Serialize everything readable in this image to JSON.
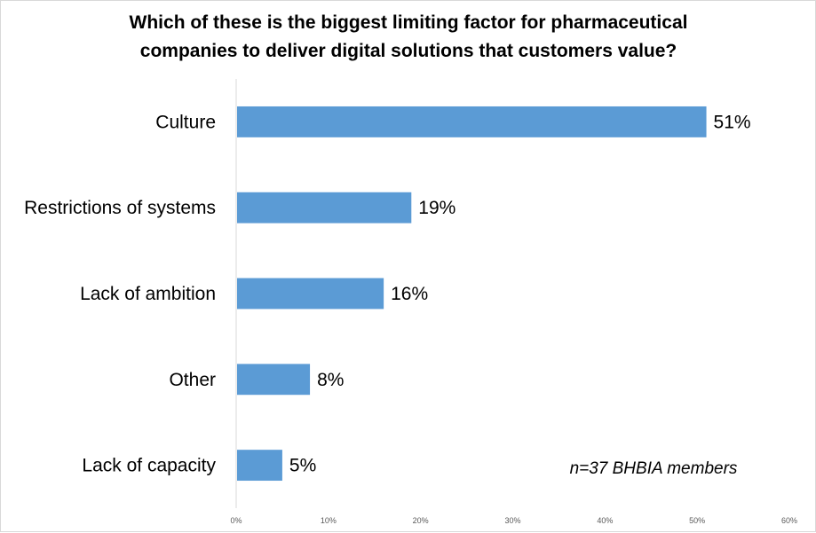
{
  "chart_data": {
    "type": "bar",
    "orientation": "horizontal",
    "title": "Which of these is the biggest limiting factor for pharmaceutical companies to deliver digital solutions that customers value?",
    "title_lines": [
      "Which of these is the biggest limiting factor for pharmaceutical",
      "companies to deliver digital solutions that customers value?"
    ],
    "categories": [
      "Culture",
      "Restrictions of systems",
      "Lack of ambition",
      "Other",
      "Lack of capacity"
    ],
    "values": [
      51,
      19,
      16,
      8,
      5
    ],
    "data_labels": [
      "51%",
      "19%",
      "16%",
      "8%",
      "5%"
    ],
    "xlim": [
      0,
      60
    ],
    "x_ticks": [
      "0%",
      "10%",
      "20%",
      "30%",
      "40%",
      "50%",
      "60%"
    ],
    "xlabel": "",
    "ylabel": "",
    "bar_color": "#5b9bd5",
    "grid": false,
    "legend": "none",
    "annotation": "n=37 BHBIA members"
  }
}
